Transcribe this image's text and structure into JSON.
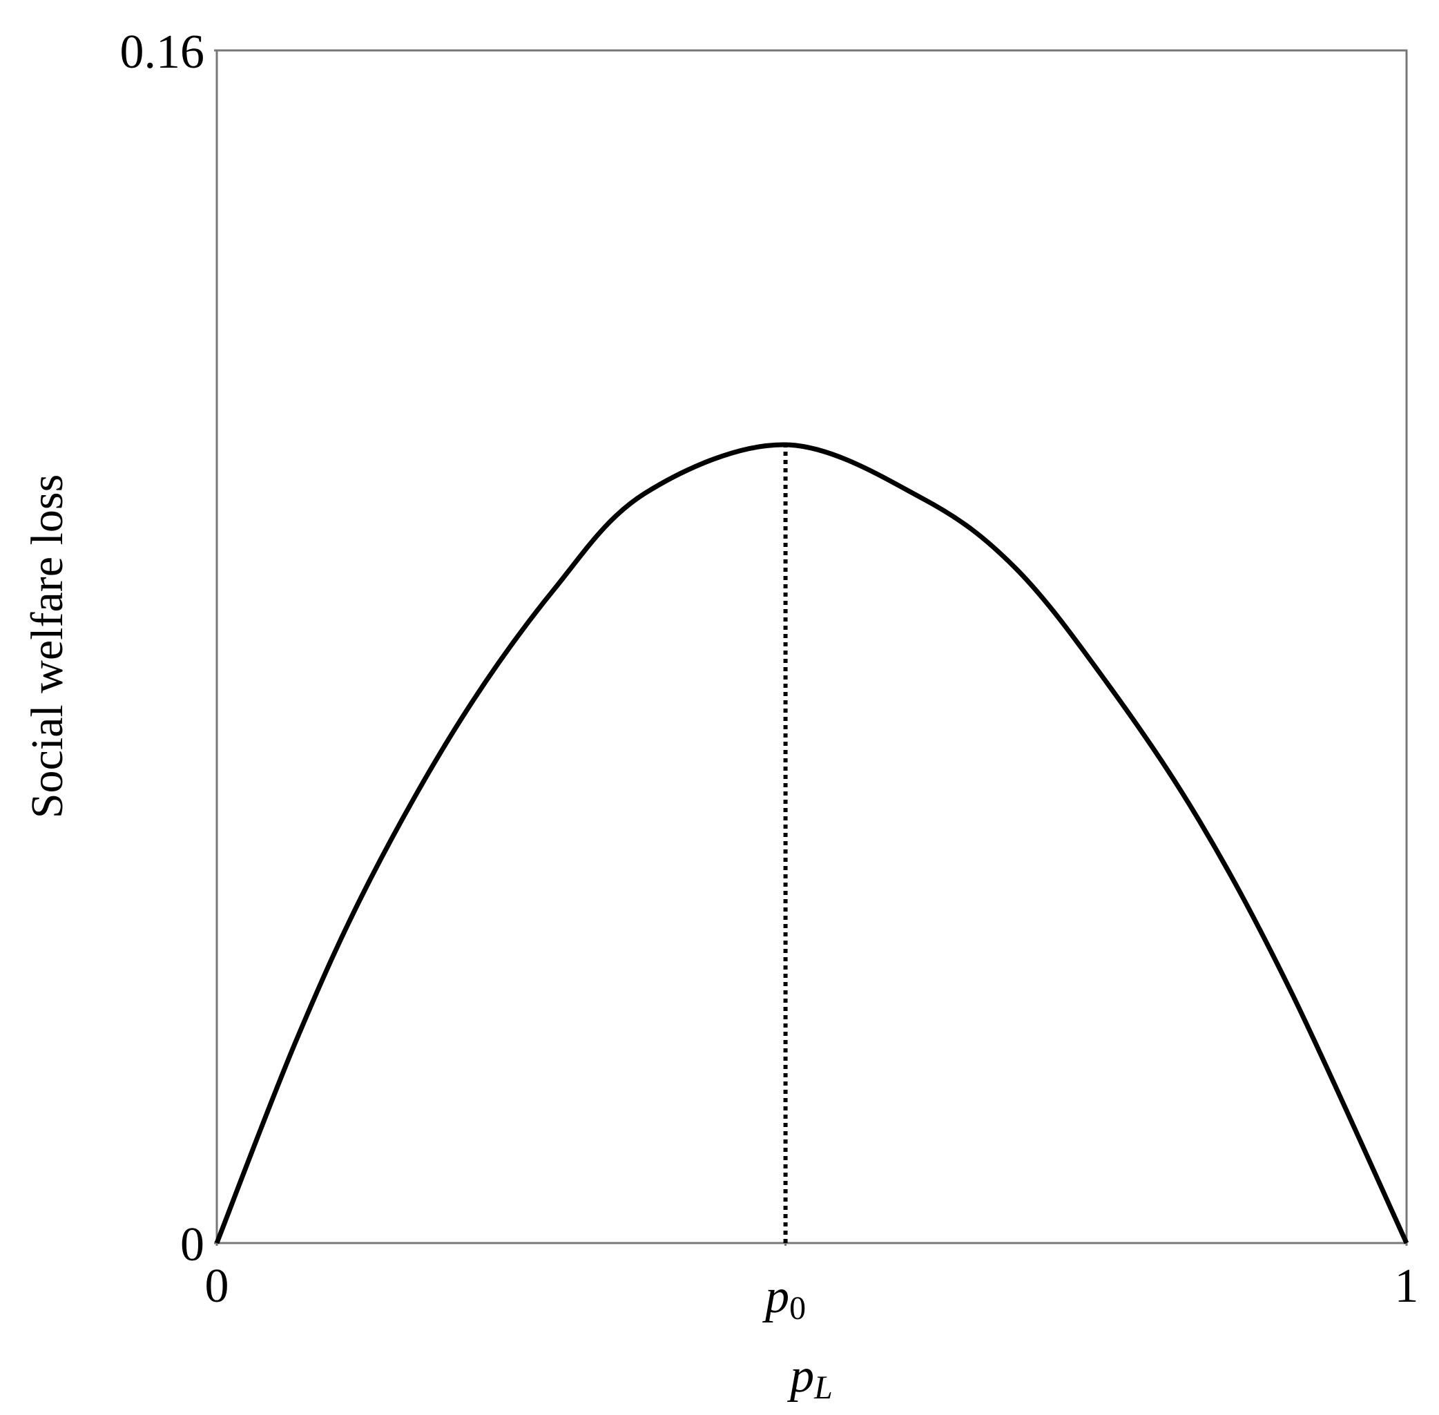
{
  "chart_data": {
    "type": "line",
    "ylabel": "Social welfare loss",
    "xlabel": {
      "base": "p",
      "sub": "L"
    },
    "x": [
      0,
      0.066,
      0.128,
      0.205,
      0.283,
      0.36,
      0.478,
      0.593,
      0.671,
      0.748,
      0.826,
      0.903,
      1
    ],
    "series": [
      {
        "color": "#000000",
        "values": [
          0,
          0.0269,
          0.0485,
          0.0702,
          0.0876,
          0.1006,
          0.1071,
          0.0999,
          0.0906,
          0.0752,
          0.0566,
          0.0337,
          0
        ]
      }
    ],
    "xlim": [
      0,
      1
    ],
    "ylim": [
      0,
      0.16
    ],
    "xticks": [
      0,
      {
        "value": 0.478,
        "label": {
          "base": "p",
          "sub": "0"
        }
      },
      1
    ],
    "yticks": [
      0,
      0.16
    ],
    "peak_index": 6,
    "grid": false
  }
}
